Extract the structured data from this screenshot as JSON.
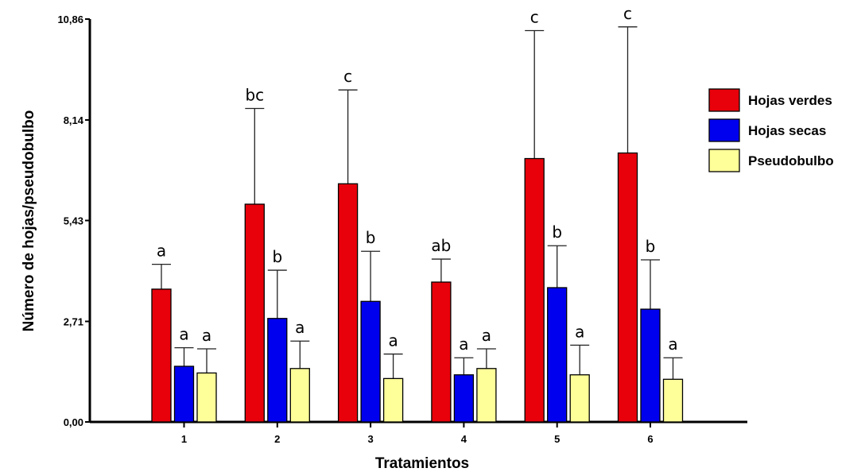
{
  "chart_data": {
    "type": "bar",
    "title": "",
    "xlabel": "Tratamientos",
    "ylabel": "Número de hojas/pseudobulbo",
    "categories": [
      "1",
      "2",
      "3",
      "4",
      "5",
      "6"
    ],
    "ylim": [
      0,
      10.86
    ],
    "yticks": [
      "0,00",
      "2,71",
      "5,43",
      "8,14",
      "10,86"
    ],
    "ytick_values": [
      0,
      2.71,
      5.43,
      8.14,
      10.86
    ],
    "grid": false,
    "legend_position": "right",
    "series": [
      {
        "name": "Hojas verdes",
        "color": "#e8000b",
        "values": [
          3.58,
          5.87,
          6.42,
          3.77,
          7.1,
          7.25
        ],
        "error_upper": [
          4.25,
          8.45,
          8.95,
          4.39,
          10.55,
          10.65
        ],
        "letters": [
          "a",
          "bc",
          "c",
          "ab",
          "c",
          "c"
        ]
      },
      {
        "name": "Hojas secas",
        "color": "#0000ee",
        "values": [
          1.5,
          2.79,
          3.25,
          1.27,
          3.62,
          3.04
        ],
        "error_upper": [
          2.0,
          4.09,
          4.6,
          1.73,
          4.75,
          4.37
        ],
        "letters": [
          "a",
          "b",
          "b",
          "a",
          "b",
          "b"
        ]
      },
      {
        "name": "Pseudobulbo",
        "color": "#ffff99",
        "values": [
          1.32,
          1.44,
          1.17,
          1.44,
          1.27,
          1.15
        ],
        "error_upper": [
          1.97,
          2.18,
          1.83,
          1.97,
          2.07,
          1.73
        ],
        "letters": [
          "a",
          "a",
          "a",
          "a",
          "a",
          "a"
        ]
      }
    ]
  }
}
